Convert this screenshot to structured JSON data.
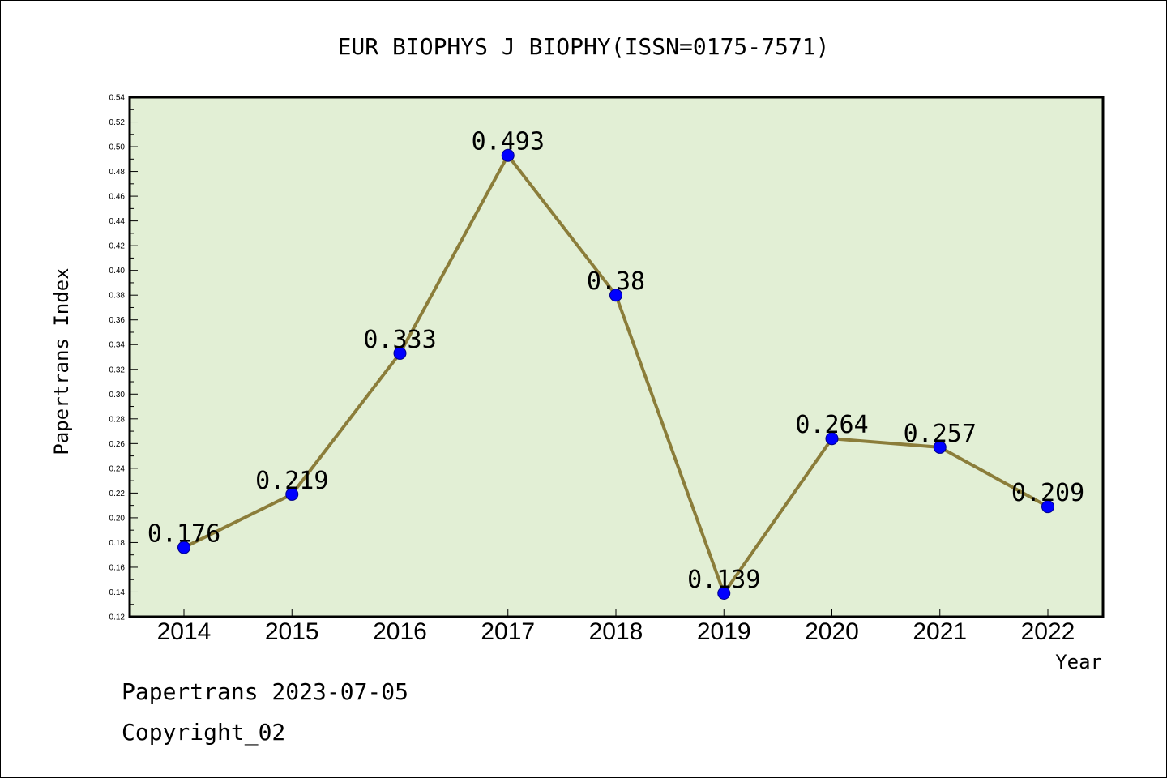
{
  "chart_data": {
    "type": "line",
    "title": "EUR BIOPHYS J BIOPHY(ISSN=0175-7571)",
    "xlabel": "Year",
    "ylabel": "Papertrans Index",
    "categories": [
      "2014",
      "2015",
      "2016",
      "2017",
      "2018",
      "2019",
      "2020",
      "2021",
      "2022"
    ],
    "series": [
      {
        "values": [
          0.176,
          0.219,
          0.333,
          0.493,
          0.38,
          0.139,
          0.264,
          0.257,
          0.209
        ],
        "labels": [
          "0.176",
          "0.219",
          "0.333",
          "0.493",
          "0.38",
          "0.139",
          "0.264",
          "0.257",
          "0.209"
        ]
      }
    ],
    "ylim": [
      0.12,
      0.54
    ],
    "yticks": [
      "0.12",
      "0.14",
      "0.16",
      "0.18",
      "0.20",
      "0.22",
      "0.24",
      "0.26",
      "0.28",
      "0.30",
      "0.32",
      "0.34",
      "0.36",
      "0.38",
      "0.40",
      "0.42",
      "0.44",
      "0.46",
      "0.48",
      "0.50",
      "0.52",
      "0.54"
    ],
    "grid": false,
    "colors": {
      "plot_background": "#e2efd5",
      "line": "#8b7d3a",
      "marker": "#0000ff"
    }
  },
  "footer": {
    "date_line": "Papertrans 2023-07-05",
    "copyright": "Copyright_02"
  }
}
